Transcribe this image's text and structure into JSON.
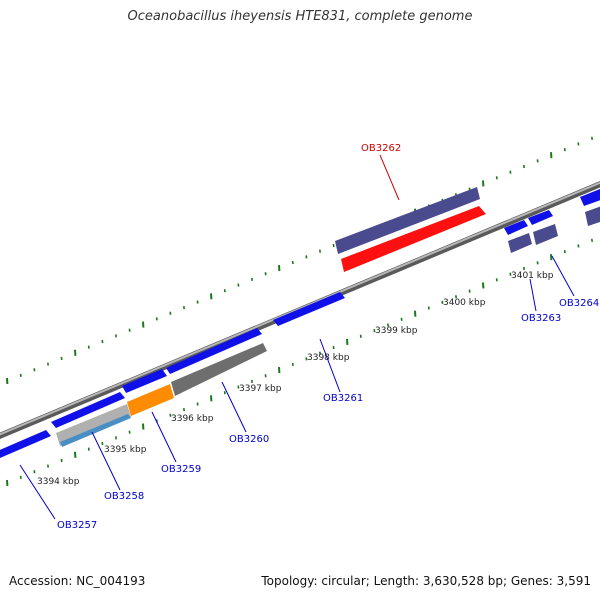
{
  "title": "Oceanobacillus iheyensis HTE831, complete genome",
  "footer": {
    "accession": "Accession: NC_004193",
    "summary": "Topology: circular; Length: 3,630,528 bp; Genes: 3,591"
  },
  "colors": {
    "blue_gene": "#1010e8",
    "slate_gene": "#4a4a8e",
    "red_gene": "#ff1010",
    "orange_gene": "#ff8c00",
    "gray_gene": "#6e6e6e",
    "steelblue_gene": "#4a8fc4",
    "backbone": "#8c8c8c",
    "tick": "#1a7a1a",
    "label_blue": "#0000cc",
    "label_red": "#cc0000"
  },
  "kbp_labels": [
    "3394 kbp",
    "3395 kbp",
    "3396 kbp",
    "3397 kbp",
    "3398 kbp",
    "3399 kbp",
    "3400 kbp",
    "3401 kbp"
  ],
  "gene_labels": [
    {
      "name": "OB3257",
      "color": "blue"
    },
    {
      "name": "OB3258",
      "color": "blue"
    },
    {
      "name": "OB3259",
      "color": "blue"
    },
    {
      "name": "OB3260",
      "color": "blue"
    },
    {
      "name": "OB3261",
      "color": "blue"
    },
    {
      "name": "OB3262",
      "color": "red"
    },
    {
      "name": "OB3263",
      "color": "blue"
    },
    {
      "name": "OB3264",
      "color": "blue"
    }
  ]
}
